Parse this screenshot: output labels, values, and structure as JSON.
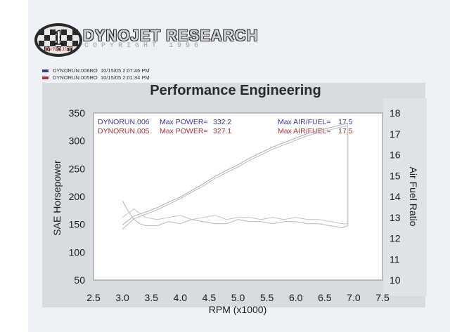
{
  "branding": {
    "badge_number": "1",
    "badge_text": "DYNOJET",
    "name": "DYNOJET RESEARCH",
    "copyright": "COPYRIGHT 1996"
  },
  "runs": [
    {
      "label": "DYNORUN.006RO",
      "date": "10/15/05",
      "time": "2:07:46 PM",
      "color": "#3a3a9a"
    },
    {
      "label": "DYNORUN.005RO",
      "date": "10/15/05",
      "time": "2:01:34 PM",
      "color": "#b03030"
    }
  ],
  "chart_data": {
    "type": "line",
    "title": "Performance Engineering",
    "xlabel": "RPM (x1000)",
    "ylabel": "SAE Horsepower",
    "y2label": "Air Fuel Ratio",
    "xlim": [
      2.5,
      7.5
    ],
    "ylim": [
      50,
      350
    ],
    "y2lim": [
      10,
      18
    ],
    "x_ticks": [
      "2.5",
      "3.0",
      "3.5",
      "4.0",
      "4.5",
      "5.0",
      "5.5",
      "6.0",
      "6.5",
      "7.0",
      "7.5"
    ],
    "y_ticks": [
      "50",
      "100",
      "150",
      "200",
      "250",
      "300",
      "350"
    ],
    "y2_ticks": [
      "10",
      "11",
      "12",
      "13",
      "14",
      "15",
      "16",
      "17",
      "18"
    ],
    "grid": false,
    "annotations": [
      {
        "run": "DYNORUN.006",
        "power_label": "Max POWER=",
        "power": "332.2",
        "afr_label": "Max AIR/FUEL=",
        "afr": "17.5",
        "color": "#3a3a9a"
      },
      {
        "run": "DYNORUN.005",
        "power_label": "Max POWER=",
        "power": "327.1",
        "afr_label": "Max AIR/FUEL=",
        "afr": "17.5",
        "color": "#b03030"
      }
    ],
    "series": [
      {
        "axis": "left",
        "color": "#b8bcc2",
        "x": [
          3.0,
          3.2,
          3.4,
          3.6,
          3.8,
          4.0,
          4.2,
          4.4,
          4.6,
          4.8,
          5.0,
          5.2,
          5.4,
          5.6,
          5.8,
          6.0,
          6.2,
          6.4,
          6.6,
          6.8,
          6.9
        ],
        "values": [
          141,
          160,
          168,
          176,
          186,
          196,
          208,
          219,
          232,
          243,
          253,
          265,
          275,
          285,
          293,
          301,
          309,
          315,
          320,
          325,
          327
        ]
      },
      {
        "axis": "left",
        "color": "#a9adb4",
        "x": [
          3.0,
          3.2,
          3.4,
          3.6,
          3.8,
          4.0,
          4.2,
          4.4,
          4.6,
          4.8,
          5.0,
          5.2,
          5.4,
          5.6,
          5.8,
          6.0,
          6.2,
          6.4,
          6.6,
          6.8,
          6.9
        ],
        "values": [
          149,
          165,
          172,
          180,
          190,
          199,
          211,
          223,
          236,
          247,
          257,
          269,
          279,
          289,
          297,
          305,
          313,
          319,
          324,
          329,
          332
        ]
      },
      {
        "axis": "right",
        "color": "#b5b9bf",
        "x": [
          3.0,
          3.1,
          3.2,
          3.3,
          3.4,
          3.6,
          3.8,
          4.0,
          4.2,
          4.4,
          4.6,
          4.8,
          5.0,
          5.2,
          5.4,
          5.6,
          5.8,
          6.0,
          6.2,
          6.4,
          6.6,
          6.8,
          6.9,
          6.9
        ],
        "values": [
          13.8,
          13.3,
          12.9,
          12.7,
          12.6,
          12.6,
          12.8,
          12.7,
          12.9,
          12.8,
          12.7,
          12.7,
          12.9,
          12.8,
          12.8,
          12.7,
          12.8,
          12.8,
          12.7,
          12.7,
          12.6,
          12.5,
          12.6,
          17.3
        ]
      },
      {
        "axis": "right",
        "color": "#c0c4ca",
        "x": [
          3.0,
          3.2,
          3.4,
          3.6,
          3.8,
          4.0,
          4.2,
          4.4,
          4.6,
          4.8,
          5.0,
          5.2,
          5.4,
          5.6,
          5.8,
          6.0,
          6.2,
          6.4,
          6.6,
          6.8,
          6.9,
          6.9
        ],
        "values": [
          13.0,
          13.4,
          13.0,
          12.9,
          13.0,
          13.1,
          12.9,
          13.0,
          13.1,
          12.9,
          13.0,
          13.0,
          12.9,
          13.0,
          12.9,
          13.0,
          12.9,
          12.9,
          12.8,
          12.7,
          12.7,
          17.5
        ]
      }
    ]
  }
}
